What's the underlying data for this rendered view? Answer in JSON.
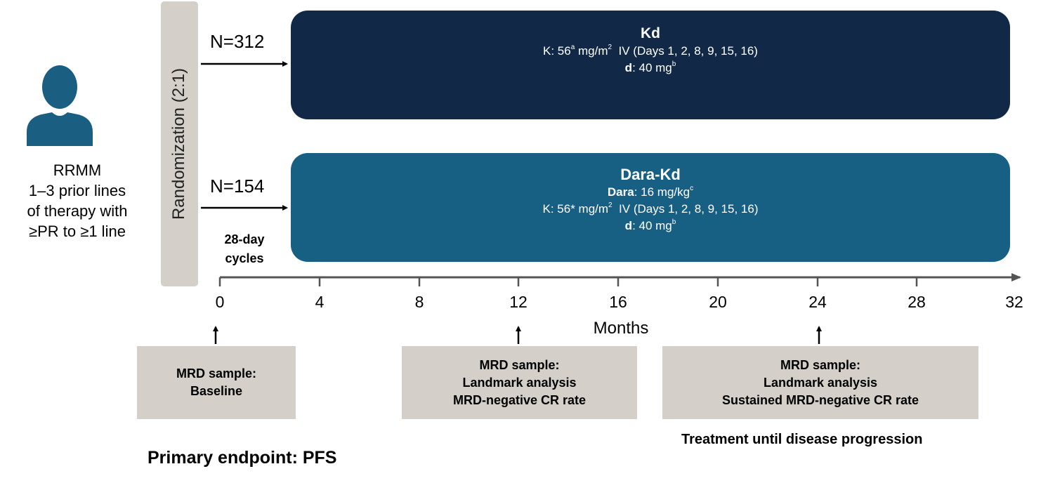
{
  "patient": {
    "icon": "person-icon",
    "lines": [
      "RRMM",
      "1–3 prior lines",
      "of therapy with",
      "≥PR to ≥1 line"
    ]
  },
  "randomization": {
    "label": "Randomization (2:1)"
  },
  "arms": [
    {
      "n_label": "N=312",
      "title": "Kd",
      "color": "#112946"
    },
    {
      "n_label": "N=154",
      "title": "Dara-Kd",
      "color": "#185f84"
    }
  ],
  "cycles_label": [
    "28-day",
    "cycles"
  ],
  "timeline": {
    "ticks": [
      "0",
      "4",
      "8",
      "12",
      "16",
      "20",
      "24",
      "28",
      "32"
    ],
    "axis_label": "Months"
  },
  "mrd_boxes": [
    {
      "lines": [
        "MRD sample:",
        "Baseline"
      ]
    },
    {
      "lines": [
        "MRD sample:",
        "Landmark analysis",
        "MRD-negative CR rate"
      ]
    },
    {
      "lines": [
        "MRD sample:",
        "Landmark analysis",
        "Sustained MRD-negative CR rate"
      ]
    }
  ],
  "treatment_note": "Treatment until disease progression",
  "primary_endpoint": "Primary endpoint: PFS",
  "colors": {
    "box_fill": "#d4cfc9",
    "axis": "#555555"
  }
}
